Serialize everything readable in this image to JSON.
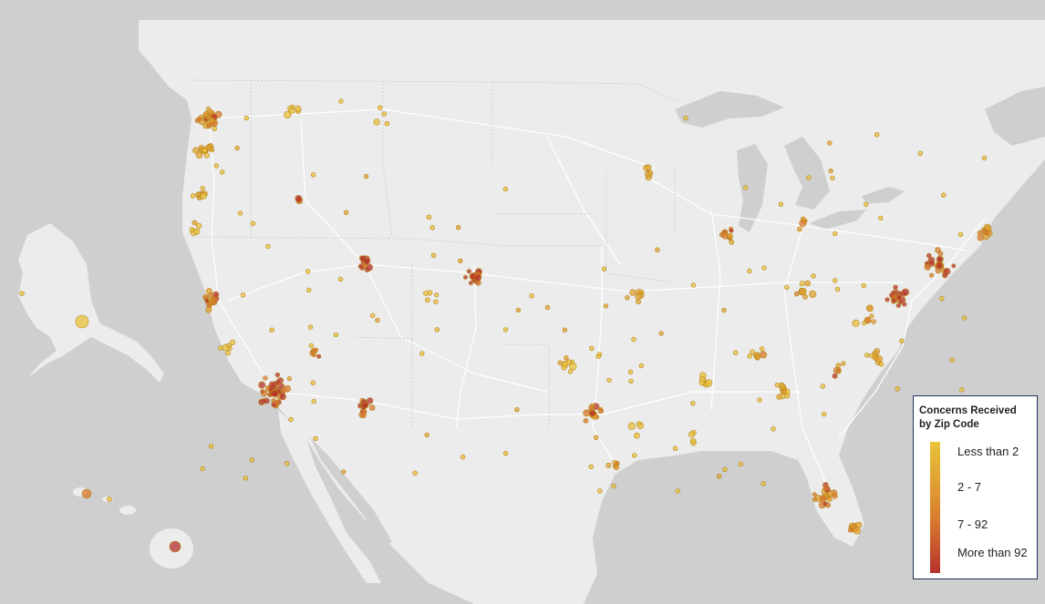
{
  "legend": {
    "title_line1": "Concerns Received",
    "title_line2": "by Zip Code",
    "labels": [
      "Less than 2",
      "2 - 7",
      "7 - 92",
      "More than 92"
    ],
    "colors": [
      "#e9c23a",
      "#e0a232",
      "#d97a2e",
      "#b5302c"
    ]
  },
  "map": {
    "land_color": "#ececec",
    "water_color": "#cfcfcf",
    "road_color": "#ffffff",
    "region": "United States"
  }
}
